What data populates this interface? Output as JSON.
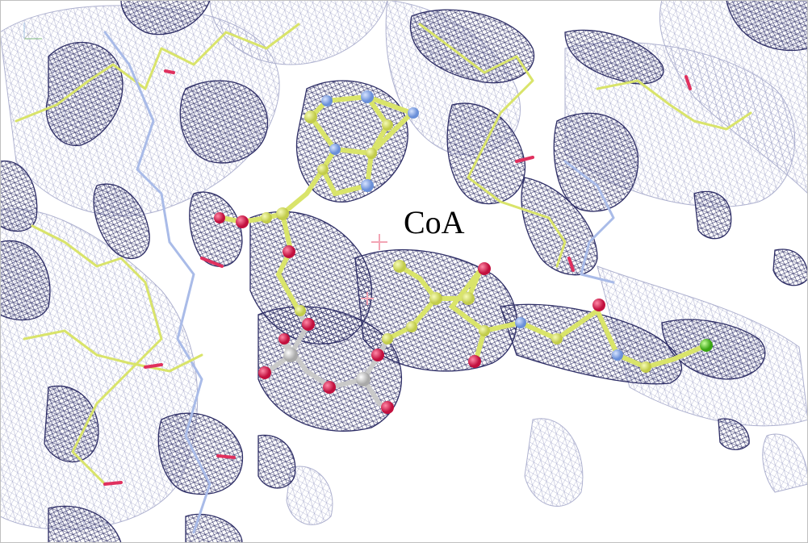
{
  "figure": {
    "label": "CoA"
  },
  "colors": {
    "mesh_dark": "#2e2e66",
    "mesh_light": "#9a9ec4",
    "carbon": "#d9e46a",
    "oxygen": "#e0305e",
    "nitrogen": "#86a8e8",
    "phosphorus": "#c9c9c9",
    "terminal": "#6fd23a"
  },
  "icons": [
    "axes-icon"
  ]
}
